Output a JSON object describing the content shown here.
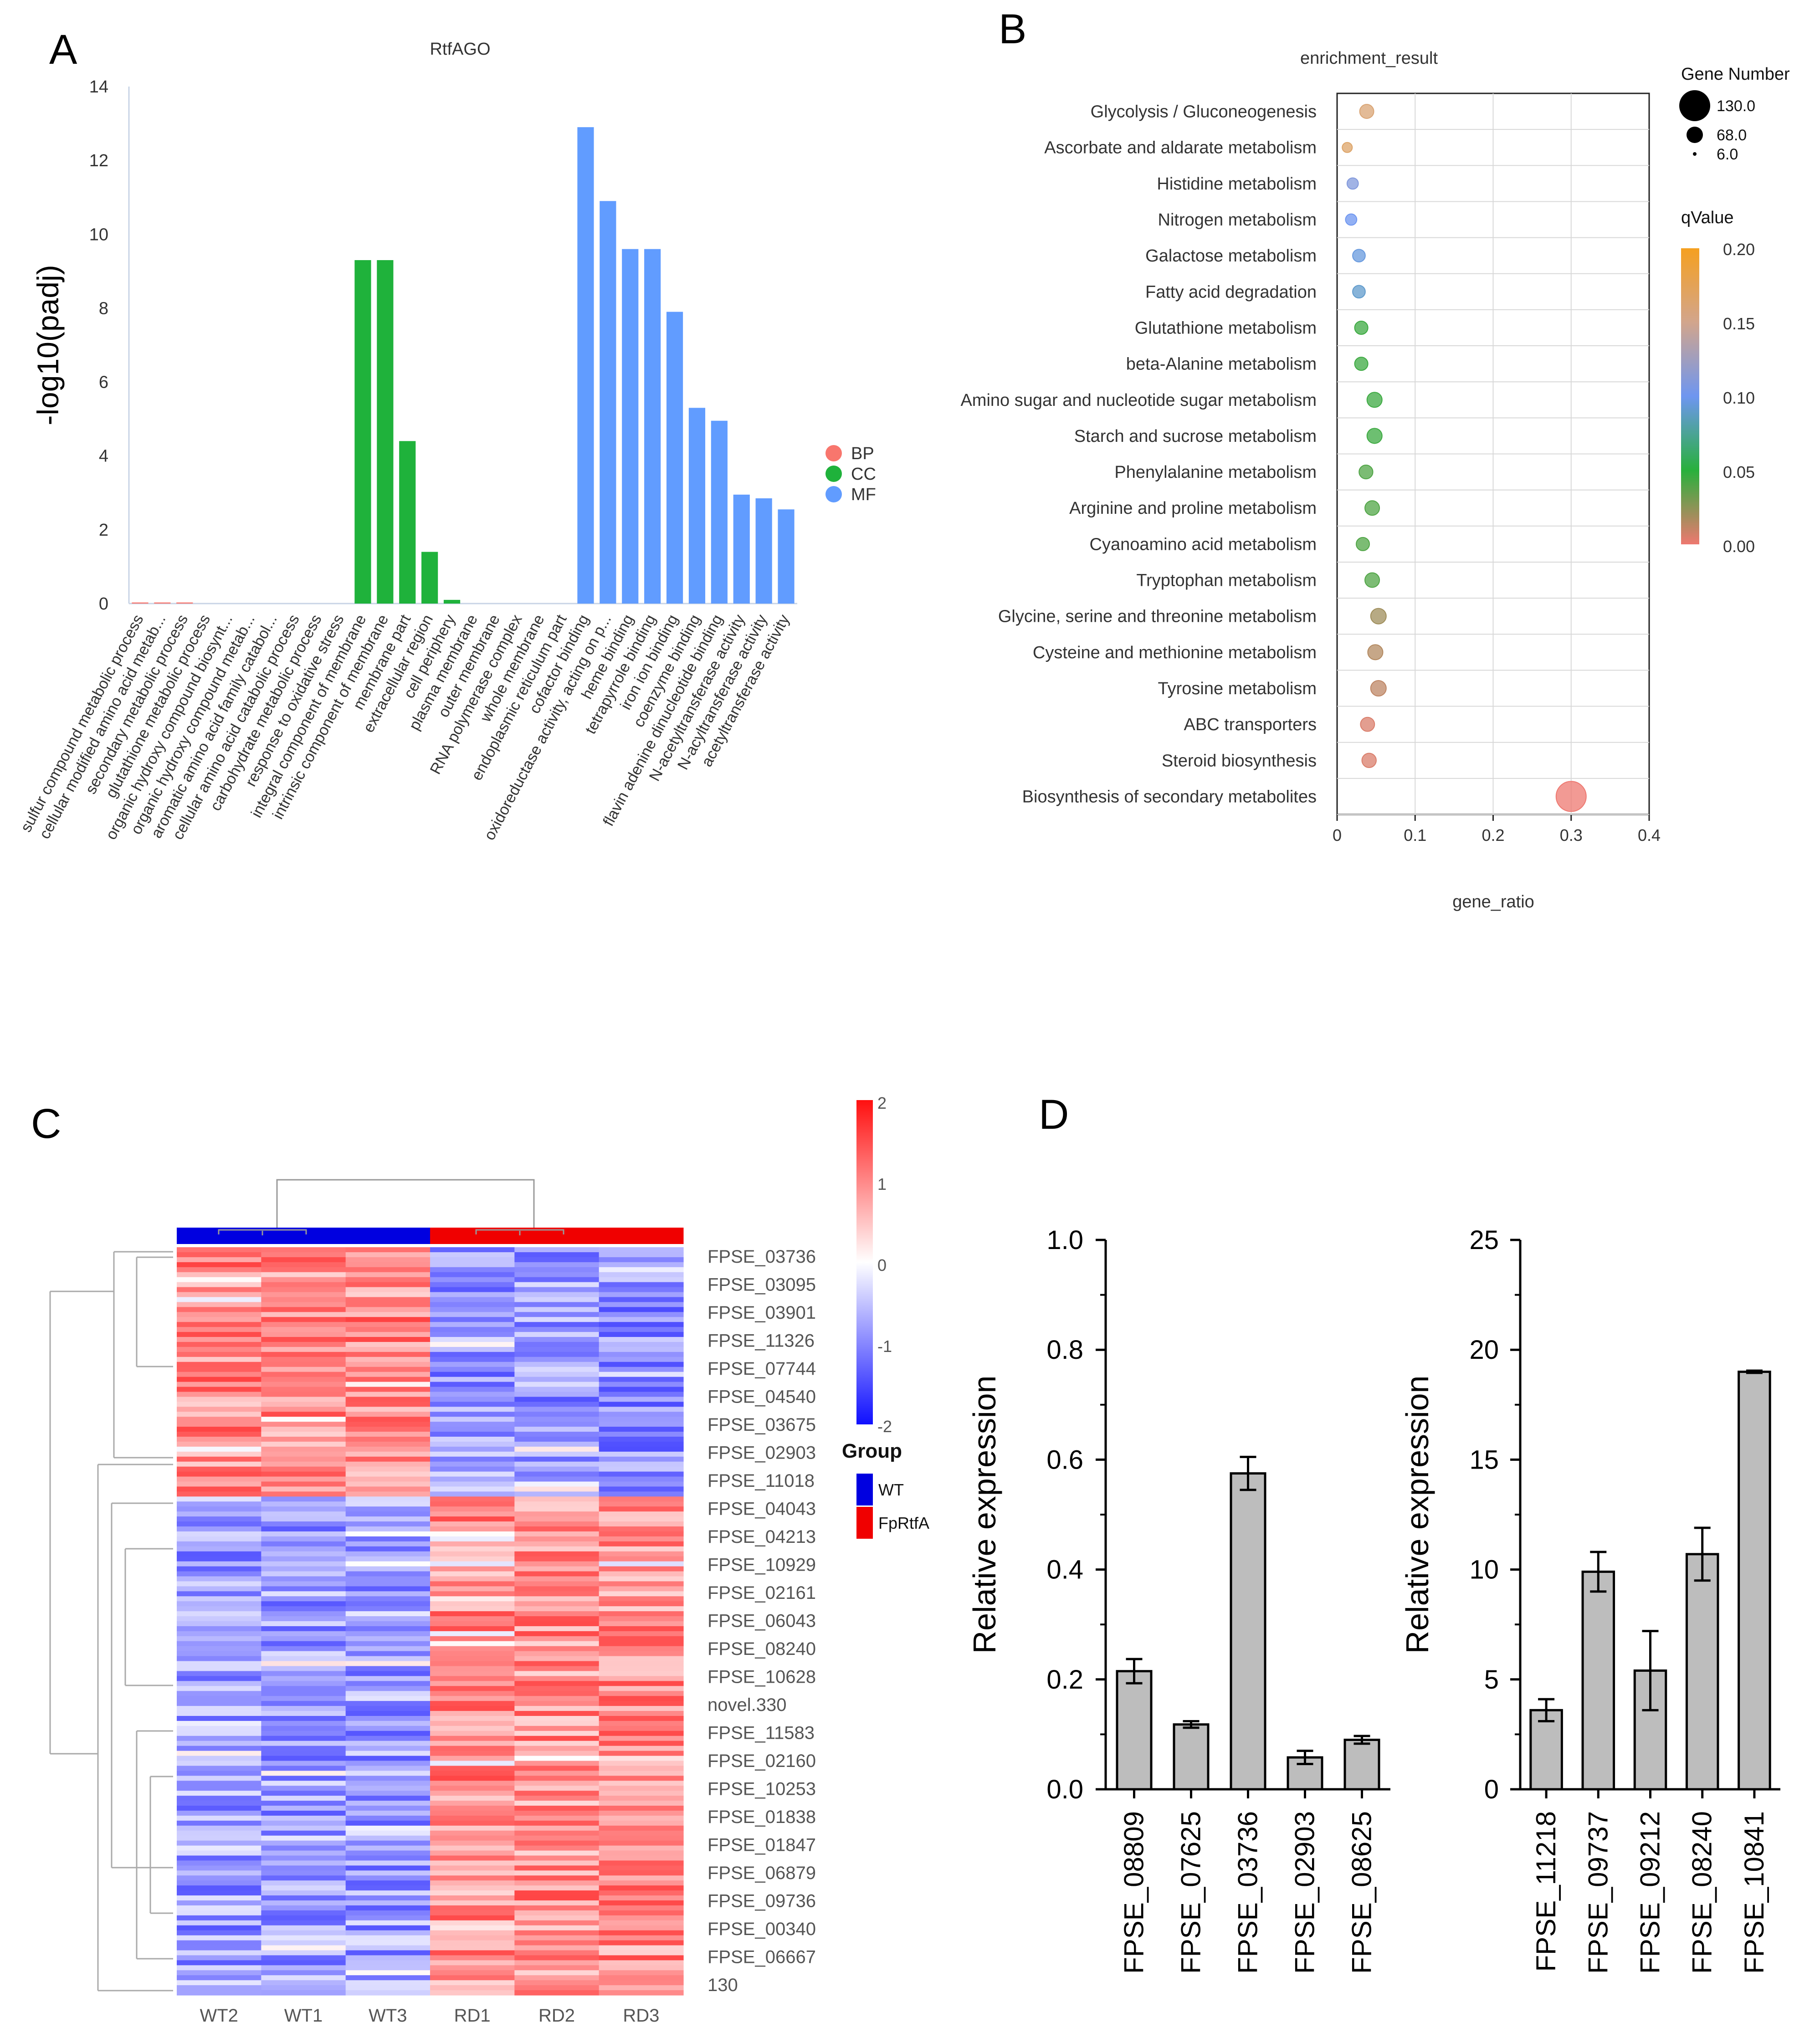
{
  "panel_letters": {
    "a": "A",
    "b": "B",
    "c": "C",
    "d": "D"
  },
  "colors": {
    "bp": "#f8766d",
    "cc": "#1fb23b",
    "mf": "#619cff",
    "bar_gray": "#bdbdbd",
    "wt": "#0000e0",
    "rtf": "#f00000"
  },
  "chart_data": [
    {
      "id": "A",
      "type": "bar",
      "title": "RtfAGO",
      "xlabel": "",
      "ylabel": "-log10(padj)",
      "ylim": [
        0,
        14
      ],
      "yticks": [
        0,
        2,
        4,
        6,
        8,
        10,
        12,
        14
      ],
      "legend": {
        "position": "right",
        "entries": [
          "BP",
          "CC",
          "MF"
        ]
      },
      "categories": [
        "sulfur compound metabolic process",
        "cellular modified amino acid metab...",
        "secondary metabolic process",
        "glutathione metabolic process",
        "organic hydroxy compound biosynt...",
        "organic hydroxy compound metab...",
        "aromatic amino acid family catabol...",
        "cellular amino acid catabolic process",
        "carbohydrate metabolic process",
        "response to oxidative stress",
        "integral component of membrane",
        "intrinsic component of membrane",
        "membrane part",
        "extracellular region",
        "cell periphery",
        "plasma membrane",
        "outer membrane",
        "RNA polymerase complex",
        "whole membrane",
        "endoplasmic reticulum part",
        "cofactor binding",
        "oxidoreductase activity, acting on p...",
        "heme binding",
        "tetrapyrrole binding",
        "iron ion binding",
        "coenzyme binding",
        "flavin adenine dinucleotide binding",
        "N-acetyltransferase activity",
        "N-acyltransferase activity",
        "acetyltransferase activity"
      ],
      "groups": [
        "BP",
        "BP",
        "BP",
        "BP",
        "BP",
        "BP",
        "BP",
        "BP",
        "BP",
        "BP",
        "CC",
        "CC",
        "CC",
        "CC",
        "CC",
        "CC",
        "CC",
        "CC",
        "CC",
        "CC",
        "MF",
        "MF",
        "MF",
        "MF",
        "MF",
        "MF",
        "MF",
        "MF",
        "MF",
        "MF"
      ],
      "values": [
        0.03,
        0.03,
        0.03,
        0,
        0,
        0,
        0,
        0,
        0,
        0,
        9.3,
        9.3,
        4.4,
        1.4,
        0.1,
        0,
        0,
        0,
        0,
        0,
        12.9,
        10.9,
        9.6,
        9.6,
        7.9,
        5.3,
        4.95,
        2.95,
        2.85,
        2.55
      ]
    },
    {
      "id": "B",
      "type": "scatter",
      "title": "enrichment_result",
      "xlabel": "gene_ratio",
      "xlim": [
        0,
        0.4
      ],
      "xticks": [
        0,
        0.1,
        0.2,
        0.3,
        0.4
      ],
      "xtick_labels": [
        "0",
        "0.1",
        "0.2",
        "0.3",
        "0.4"
      ],
      "size_legend_title": "Gene Number",
      "size_legend": [
        "130.0",
        "68.0",
        "6.0"
      ],
      "color_legend_title": "qValue",
      "color_ticks": [
        "0.20",
        "0.15",
        "0.10",
        "0.05",
        "0.00"
      ],
      "terms": [
        "Glycolysis / Gluconeogenesis",
        "Ascorbate and aldarate metabolism",
        "Histidine metabolism",
        "Nitrogen metabolism",
        "Galactose metabolism",
        "Fatty acid degradation",
        "Glutathione metabolism",
        "beta-Alanine metabolism",
        "Amino sugar and nucleotide sugar metabolism",
        "Starch and sucrose metabolism",
        "Phenylalanine metabolism",
        "Arginine and proline metabolism",
        "Cyanoamino acid metabolism",
        "Tryptophan metabolism",
        "Glycine, serine and threonine metabolism",
        "Cysteine and methionine metabolism",
        "Tyrosine metabolism",
        "ABC transporters",
        "Steroid biosynthesis",
        "Biosynthesis of secondary metabolites"
      ],
      "gene_ratio": [
        0.038,
        0.013,
        0.02,
        0.018,
        0.028,
        0.028,
        0.031,
        0.031,
        0.048,
        0.048,
        0.037,
        0.045,
        0.033,
        0.045,
        0.053,
        0.049,
        0.053,
        0.039,
        0.041,
        0.3
      ],
      "gene_number": [
        18,
        6,
        9,
        9,
        13,
        13,
        15,
        15,
        22,
        22,
        17,
        20,
        15,
        20,
        24,
        22,
        24,
        18,
        19,
        130
      ],
      "qvalue": [
        0.16,
        0.165,
        0.11,
        0.1,
        0.095,
        0.09,
        0.045,
        0.045,
        0.045,
        0.045,
        0.04,
        0.04,
        0.04,
        0.04,
        0.02,
        0.015,
        0.012,
        0.005,
        0.005,
        0.0
      ]
    },
    {
      "id": "C",
      "type": "heatmap",
      "columns": [
        "WT2",
        "WT1",
        "WT3",
        "RD1",
        "RD2",
        "RD3"
      ],
      "column_groups": [
        "WT",
        "WT",
        "WT",
        "FpRtfA",
        "FpRtfA",
        "FpRtfA"
      ],
      "row_labels": [
        "FPSE_03736",
        "FPSE_03095",
        "FPSE_03901",
        "FPSE_11326",
        "FPSE_07744",
        "FPSE_04540",
        "FPSE_03675",
        "FPSE_02903",
        "FPSE_11018",
        "FPSE_04043",
        "FPSE_04213",
        "FPSE_10929",
        "FPSE_02161",
        "FPSE_06043",
        "FPSE_08240",
        "FPSE_10628",
        "novel.330",
        "FPSE_11583",
        "FPSE_02160",
        "FPSE_10253",
        "FPSE_01838",
        "FPSE_01847",
        "FPSE_06879",
        "FPSE_09736",
        "FPSE_00340",
        "FPSE_06667",
        "130"
      ],
      "row_cluster_sizes": [
        8,
        19
      ],
      "colorbar_ticks": [
        "2",
        "1",
        "0",
        "-1",
        "-2"
      ],
      "group_legend_title": "Group",
      "group_legend": [
        "WT",
        "FpRtfA"
      ]
    },
    {
      "id": "D-left",
      "type": "bar",
      "ylabel": "Relative expression",
      "ylim": [
        0,
        1.0
      ],
      "yticks": [
        "0.0",
        "0.2",
        "0.4",
        "0.6",
        "0.8",
        "1.0"
      ],
      "categories": [
        "FPSE_08809",
        "FPSE_07625",
        "FPSE_03736",
        "FPSE_02903",
        "FPSE_08625"
      ],
      "values": [
        0.215,
        0.118,
        0.575,
        0.058,
        0.09
      ],
      "errors": [
        0.022,
        0.006,
        0.03,
        0.012,
        0.007
      ]
    },
    {
      "id": "D-right",
      "type": "bar",
      "ylabel": "Relative expression",
      "ylim": [
        0,
        25
      ],
      "yticks": [
        "0",
        "5",
        "10",
        "15",
        "20",
        "25"
      ],
      "categories": [
        "FPSE_11218",
        "FPSE_09737",
        "FPSE_09212",
        "FPSE_08240",
        "FPSE_10841"
      ],
      "values": [
        3.6,
        9.9,
        5.4,
        10.7,
        19.0
      ],
      "errors": [
        0.5,
        0.9,
        1.8,
        1.2,
        0.05
      ]
    }
  ]
}
